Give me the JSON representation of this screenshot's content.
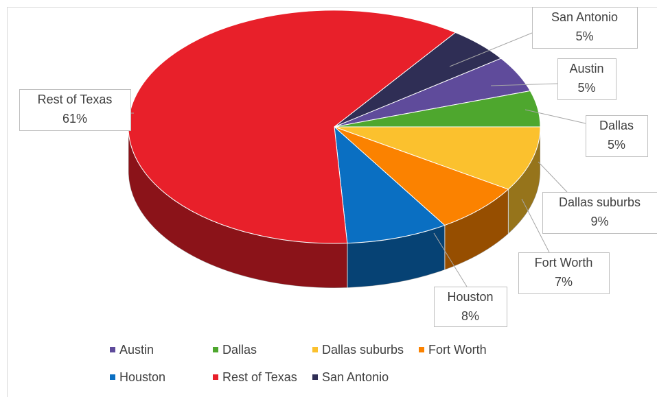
{
  "chart_data": {
    "type": "pie",
    "categories": [
      "Austin",
      "Dallas",
      "Dallas suburbs",
      "Fort Worth",
      "Houston",
      "Rest of Texas",
      "San Antonio"
    ],
    "values": [
      5,
      5,
      9,
      7,
      8,
      61,
      5
    ],
    "value_labels": [
      "5%",
      "5%",
      "9%",
      "7%",
      "8%",
      "61%",
      "5%"
    ],
    "colors": [
      "#5f4b9b",
      "#4ea72e",
      "#fbc12e",
      "#fb8200",
      "#0a6fc2",
      "#e8202a",
      "#2f2e55"
    ],
    "legend": "bottom"
  }
}
